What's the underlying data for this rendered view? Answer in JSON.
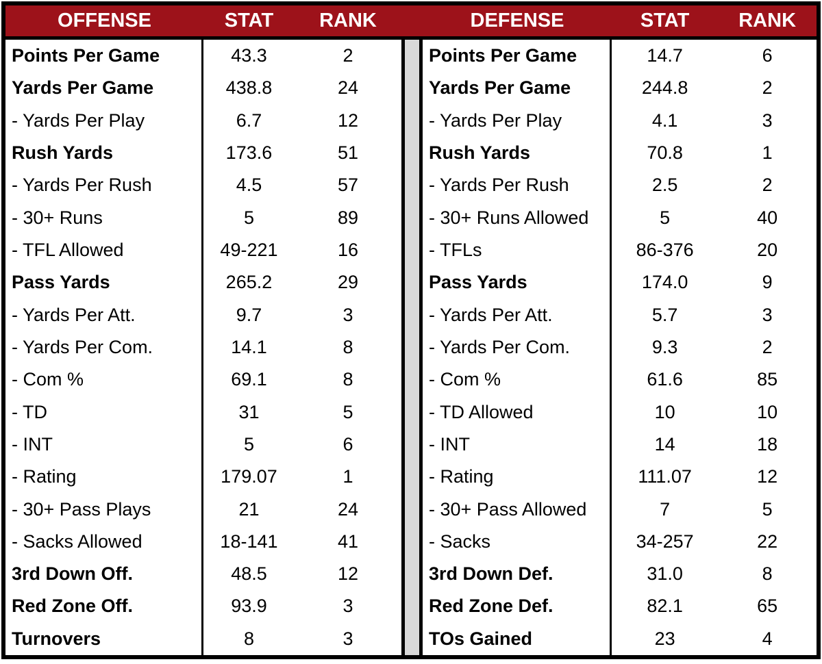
{
  "colors": {
    "header_bg": "#9D121A",
    "header_text": "#FFFFFF",
    "divider": "#D9D9D9",
    "border": "#000000",
    "row_bg": "#FFFFFF",
    "text": "#000000"
  },
  "chart_data": [
    {
      "type": "table",
      "section": "offense",
      "columns": [
        "OFFENSE",
        "STAT",
        "RANK"
      ],
      "rows": [
        {
          "label": "Points Per Game",
          "stat": "43.3",
          "rank": "2",
          "bold": true
        },
        {
          "label": "Yards Per Game",
          "stat": "438.8",
          "rank": "24",
          "bold": true
        },
        {
          "label": "- Yards Per Play",
          "stat": "6.7",
          "rank": "12",
          "bold": false
        },
        {
          "label": "Rush Yards",
          "stat": "173.6",
          "rank": "51",
          "bold": true
        },
        {
          "label": "- Yards Per Rush",
          "stat": "4.5",
          "rank": "57",
          "bold": false
        },
        {
          "label": "- 30+ Runs",
          "stat": "5",
          "rank": "89",
          "bold": false
        },
        {
          "label": "- TFL Allowed",
          "stat": "49-221",
          "rank": "16",
          "bold": false
        },
        {
          "label": "Pass Yards",
          "stat": "265.2",
          "rank": "29",
          "bold": true
        },
        {
          "label": "- Yards Per Att.",
          "stat": "9.7",
          "rank": "3",
          "bold": false
        },
        {
          "label": "- Yards Per Com.",
          "stat": "14.1",
          "rank": "8",
          "bold": false
        },
        {
          "label": "- Com %",
          "stat": "69.1",
          "rank": "8",
          "bold": false
        },
        {
          "label": "- TD",
          "stat": "31",
          "rank": "5",
          "bold": false
        },
        {
          "label": "- INT",
          "stat": "5",
          "rank": "6",
          "bold": false
        },
        {
          "label": "- Rating",
          "stat": "179.07",
          "rank": "1",
          "bold": false
        },
        {
          "label": "- 30+ Pass Plays",
          "stat": "21",
          "rank": "24",
          "bold": false
        },
        {
          "label": "- Sacks Allowed",
          "stat": "18-141",
          "rank": "41",
          "bold": false
        },
        {
          "label": "3rd Down Off.",
          "stat": "48.5",
          "rank": "12",
          "bold": true
        },
        {
          "label": "Red Zone Off.",
          "stat": "93.9",
          "rank": "3",
          "bold": true
        },
        {
          "label": "Turnovers",
          "stat": "8",
          "rank": "3",
          "bold": true
        }
      ]
    },
    {
      "type": "table",
      "section": "defense",
      "columns": [
        "DEFENSE",
        "STAT",
        "RANK"
      ],
      "rows": [
        {
          "label": "Points Per Game",
          "stat": "14.7",
          "rank": "6",
          "bold": true
        },
        {
          "label": "Yards Per Game",
          "stat": "244.8",
          "rank": "2",
          "bold": true
        },
        {
          "label": "- Yards Per Play",
          "stat": "4.1",
          "rank": "3",
          "bold": false
        },
        {
          "label": "Rush Yards",
          "stat": "70.8",
          "rank": "1",
          "bold": true
        },
        {
          "label": "- Yards Per Rush",
          "stat": "2.5",
          "rank": "2",
          "bold": false
        },
        {
          "label": "- 30+ Runs Allowed",
          "stat": "5",
          "rank": "40",
          "bold": false
        },
        {
          "label": "- TFLs",
          "stat": "86-376",
          "rank": "20",
          "bold": false
        },
        {
          "label": "Pass Yards",
          "stat": "174.0",
          "rank": "9",
          "bold": true
        },
        {
          "label": "- Yards Per Att.",
          "stat": "5.7",
          "rank": "3",
          "bold": false
        },
        {
          "label": "- Yards Per Com.",
          "stat": "9.3",
          "rank": "2",
          "bold": false
        },
        {
          "label": "- Com %",
          "stat": "61.6",
          "rank": "85",
          "bold": false
        },
        {
          "label": "- TD Allowed",
          "stat": "10",
          "rank": "10",
          "bold": false
        },
        {
          "label": "- INT",
          "stat": "14",
          "rank": "18",
          "bold": false
        },
        {
          "label": "- Rating",
          "stat": "111.07",
          "rank": "12",
          "bold": false
        },
        {
          "label": "- 30+ Pass Allowed",
          "stat": "7",
          "rank": "5",
          "bold": false
        },
        {
          "label": "- Sacks",
          "stat": "34-257",
          "rank": "22",
          "bold": false
        },
        {
          "label": "3rd Down Def.",
          "stat": "31.0",
          "rank": "8",
          "bold": true
        },
        {
          "label": "Red Zone Def.",
          "stat": "82.1",
          "rank": "65",
          "bold": true
        },
        {
          "label": "TOs Gained",
          "stat": "23",
          "rank": "4",
          "bold": true
        }
      ]
    }
  ]
}
